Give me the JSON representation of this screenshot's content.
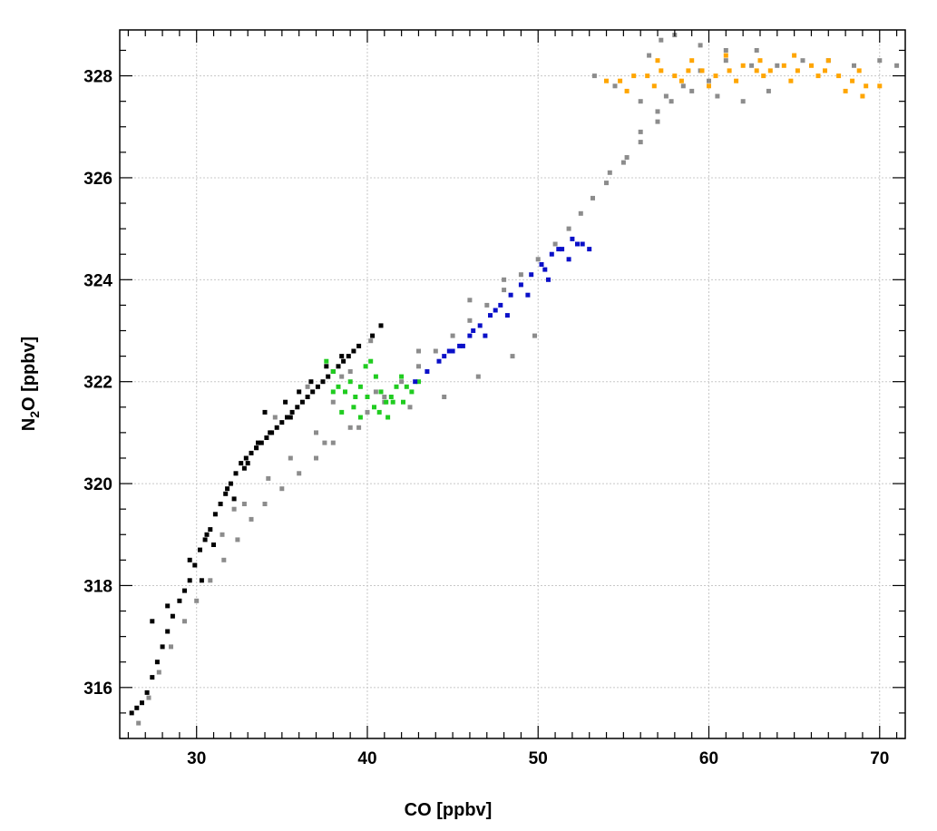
{
  "chart_data": {
    "type": "scatter",
    "title": "",
    "xlabel": "CO [ppbv]",
    "ylabel_parts": [
      "N",
      "2",
      "O [ppbv]"
    ],
    "xlim": [
      25.5,
      71.5
    ],
    "ylim": [
      315.0,
      328.9
    ],
    "xticks": [
      30,
      40,
      50,
      60,
      70
    ],
    "yticks": [
      316,
      318,
      320,
      322,
      324,
      326,
      328
    ],
    "grid": true,
    "legend": "none",
    "marker": "square",
    "series": [
      {
        "color": "#8c8c8c",
        "x": [
          26.6,
          27.2,
          27.8,
          28.5,
          29.3,
          30.0,
          30.8,
          31.6,
          32.4,
          33.2,
          34.0,
          35.0,
          36.0,
          37.0,
          38.0,
          39.0,
          40.0,
          41.0,
          42.0,
          43.0,
          44.0,
          45.0,
          46.0,
          47.0,
          48.0,
          49.0,
          50.0,
          51.0,
          51.8,
          52.5,
          53.2,
          54.0,
          55.0,
          56.0,
          57.0,
          57.8,
          58.5,
          59.5,
          61.0,
          62.5,
          64.0,
          65.5,
          67.0,
          68.5,
          70.0,
          71.0,
          53.3,
          54.5,
          56.0,
          57.5,
          59.0,
          60.5,
          62.0,
          63.5,
          56.5,
          57.2,
          58.0,
          59.5,
          61.0,
          62.8,
          60.0,
          57.0,
          56.0,
          55.2,
          54.2,
          32.8,
          34.2,
          35.5,
          37.0,
          38.0,
          39.0,
          40.2,
          33.5,
          34.6,
          36.5,
          38.5,
          40.5,
          42.5,
          44.5,
          46.5,
          48.5,
          49.8,
          46.0,
          48.0,
          43.0,
          41.0,
          39.5,
          37.5,
          31.5,
          32.2
        ],
        "y": [
          315.3,
          315.8,
          316.3,
          316.8,
          317.3,
          317.7,
          318.1,
          318.5,
          318.9,
          319.3,
          319.6,
          319.9,
          320.2,
          320.5,
          320.8,
          321.1,
          321.4,
          321.7,
          322.0,
          322.3,
          322.6,
          322.9,
          323.2,
          323.5,
          323.8,
          324.1,
          324.4,
          324.7,
          325.0,
          325.3,
          325.6,
          325.9,
          326.3,
          326.7,
          327.1,
          327.5,
          327.8,
          328.1,
          328.3,
          328.2,
          328.2,
          328.3,
          328.3,
          328.2,
          328.3,
          328.2,
          328.0,
          327.8,
          327.5,
          327.6,
          327.7,
          327.6,
          327.5,
          327.7,
          328.4,
          328.7,
          328.8,
          328.6,
          328.5,
          328.5,
          327.9,
          327.3,
          326.9,
          326.4,
          326.1,
          319.6,
          320.1,
          320.5,
          321.0,
          321.6,
          322.2,
          322.8,
          320.7,
          321.3,
          321.9,
          322.1,
          321.8,
          321.5,
          321.7,
          322.1,
          322.5,
          322.9,
          323.6,
          324.0,
          322.6,
          321.6,
          321.1,
          320.8,
          319.0,
          319.5
        ]
      },
      {
        "color": "#000000",
        "x": [
          26.2,
          26.5,
          26.8,
          27.1,
          27.4,
          27.7,
          28.0,
          28.3,
          28.6,
          29.0,
          29.3,
          29.6,
          29.9,
          30.2,
          30.5,
          30.8,
          31.1,
          31.4,
          31.7,
          32.0,
          32.3,
          32.6,
          32.9,
          33.2,
          33.5,
          33.8,
          34.1,
          34.4,
          34.7,
          35.0,
          35.3,
          35.6,
          35.9,
          36.2,
          36.5,
          36.8,
          37.1,
          37.4,
          37.7,
          38.0,
          38.3,
          38.6,
          38.9,
          39.2,
          32.2,
          32.8,
          33.6,
          34.3,
          35.2,
          36.0,
          31.0,
          30.3,
          27.4,
          28.3,
          29.6,
          30.6,
          31.8,
          33.0,
          34.0,
          35.5,
          36.7,
          37.6,
          38.5,
          39.5,
          40.3,
          40.8
        ],
        "y": [
          315.5,
          315.6,
          315.7,
          315.9,
          316.2,
          316.5,
          316.8,
          317.1,
          317.4,
          317.7,
          317.9,
          318.1,
          318.4,
          318.7,
          318.9,
          319.1,
          319.4,
          319.6,
          319.8,
          320.0,
          320.2,
          320.4,
          320.5,
          320.6,
          320.7,
          320.8,
          320.9,
          321.0,
          321.1,
          321.2,
          321.3,
          321.4,
          321.5,
          321.6,
          321.7,
          321.8,
          321.9,
          322.0,
          322.1,
          322.2,
          322.3,
          322.4,
          322.5,
          322.6,
          319.7,
          320.3,
          320.8,
          321.0,
          321.6,
          321.8,
          318.8,
          318.1,
          317.3,
          317.6,
          318.5,
          319.0,
          319.9,
          320.4,
          321.4,
          321.3,
          322.0,
          322.3,
          322.5,
          322.7,
          322.9,
          323.1
        ]
      },
      {
        "color": "#20cc20",
        "x": [
          37.6,
          38.0,
          38.3,
          38.7,
          39.0,
          39.3,
          39.6,
          39.9,
          40.2,
          40.5,
          40.8,
          41.1,
          41.4,
          41.7,
          42.0,
          42.3,
          42.6,
          43.0,
          38.5,
          39.2,
          40.0,
          40.7,
          41.5,
          38.0,
          39.6,
          40.4,
          41.2,
          42.1
        ],
        "y": [
          322.4,
          322.2,
          321.9,
          321.8,
          322.0,
          321.7,
          321.9,
          322.3,
          322.4,
          322.1,
          321.8,
          321.6,
          321.7,
          321.9,
          322.1,
          321.9,
          321.8,
          322.0,
          321.4,
          321.5,
          321.7,
          321.4,
          321.6,
          321.8,
          321.3,
          321.5,
          321.3,
          321.6
        ]
      },
      {
        "color": "#0a10c8",
        "x": [
          42.8,
          43.5,
          44.2,
          44.8,
          45.4,
          46.0,
          46.6,
          47.2,
          47.8,
          48.4,
          49.0,
          49.6,
          50.2,
          50.8,
          51.4,
          52.0,
          52.6,
          53.0,
          44.5,
          45.6,
          46.9,
          48.2,
          49.4,
          50.6,
          51.8,
          52.3,
          51.2,
          50.4,
          47.5,
          46.2,
          45.0
        ],
        "y": [
          322.0,
          322.2,
          322.4,
          322.6,
          322.7,
          322.9,
          323.1,
          323.3,
          323.5,
          323.7,
          323.9,
          324.1,
          324.3,
          324.5,
          324.6,
          324.8,
          324.7,
          324.6,
          322.5,
          322.7,
          322.9,
          323.3,
          323.7,
          324.0,
          324.4,
          324.7,
          324.6,
          324.2,
          323.4,
          323.0,
          322.6
        ]
      },
      {
        "color": "#ffa500",
        "x": [
          54.0,
          54.8,
          55.6,
          56.4,
          57.2,
          58.0,
          58.8,
          59.6,
          60.4,
          61.2,
          62.0,
          62.8,
          63.6,
          64.4,
          65.2,
          66.0,
          66.8,
          67.6,
          68.4,
          69.2,
          70.0,
          55.2,
          56.8,
          58.4,
          60.0,
          61.6,
          63.2,
          64.8,
          66.4,
          68.0,
          69.0,
          57.0,
          59.0,
          61.0,
          63.0,
          65.0,
          67.0,
          68.8
        ],
        "y": [
          327.9,
          327.9,
          328.0,
          328.0,
          328.1,
          328.0,
          328.1,
          328.1,
          328.0,
          328.1,
          328.2,
          328.1,
          328.1,
          328.2,
          328.1,
          328.2,
          328.1,
          328.0,
          327.9,
          327.8,
          327.8,
          327.7,
          327.8,
          327.9,
          327.8,
          327.9,
          328.0,
          327.9,
          328.0,
          327.7,
          327.6,
          328.3,
          328.3,
          328.4,
          328.3,
          328.4,
          328.3,
          328.1
        ]
      }
    ]
  }
}
